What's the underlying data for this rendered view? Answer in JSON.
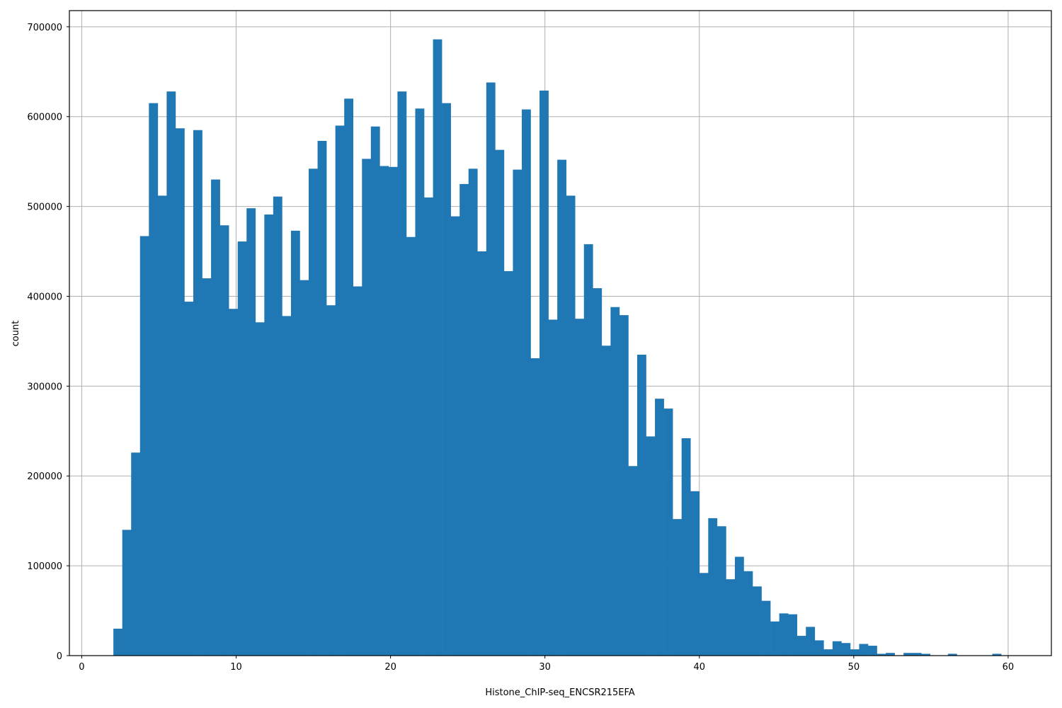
{
  "chart_data": {
    "type": "bar",
    "subtype": "histogram",
    "title": "",
    "xlabel": "Histone_ChIP-seq_ENCSR215EFA",
    "ylabel": "count",
    "xlim": [
      -0.8,
      62.8
    ],
    "ylim": [
      0,
      718000
    ],
    "grid": true,
    "legend": null,
    "bar_color": "#1f77b4",
    "x_ticks": [
      0,
      10,
      20,
      30,
      40,
      50,
      60
    ],
    "y_ticks": [
      0,
      100000,
      200000,
      300000,
      400000,
      500000,
      600000,
      700000
    ],
    "bin_start": 2.05,
    "bin_width": 0.575,
    "bin_count": 100,
    "values": [
      30000,
      140000,
      226000,
      467000,
      615000,
      512000,
      628000,
      587000,
      394000,
      585000,
      420000,
      530000,
      479000,
      386000,
      461000,
      498000,
      371000,
      491000,
      511000,
      378000,
      473000,
      418000,
      542000,
      573000,
      390000,
      590000,
      620000,
      411000,
      553000,
      589000,
      545000,
      544000,
      628000,
      466000,
      609000,
      510000,
      686000,
      615000,
      489000,
      525000,
      542000,
      450000,
      638000,
      563000,
      428000,
      541000,
      608000,
      331000,
      629000,
      374000,
      552000,
      512000,
      375000,
      458000,
      409000,
      345000,
      388000,
      379000,
      211000,
      335000,
      244000,
      286000,
      275000,
      152000,
      242000,
      183000,
      92000,
      153000,
      144000,
      85000,
      110000,
      94000,
      77000,
      61000,
      38000,
      47000,
      46000,
      22000,
      32000,
      17000,
      7000,
      16000,
      14000,
      7000,
      13000,
      11000,
      2000,
      3000,
      0,
      3000,
      3000,
      2000,
      0,
      0,
      2000,
      0,
      0,
      0,
      0,
      2000
    ]
  }
}
